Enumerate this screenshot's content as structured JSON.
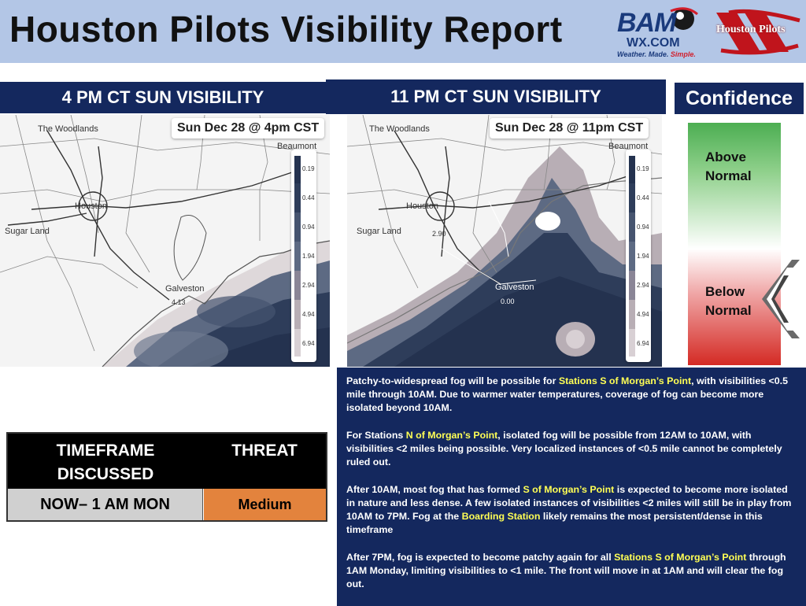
{
  "header": {
    "title": "Houston Pilots Visibility Report",
    "bam_logo": {
      "main": "BAM",
      "sub": "WX.COM",
      "tagline_part1": "Weather. Made. ",
      "tagline_part2": "Simple."
    },
    "houston_pilots_logo": "Houston Pilots"
  },
  "panels": {
    "left": {
      "heading": "4 PM CT SUN VISIBILITY",
      "timestamp": "Sun Dec 28 @ 4pm CST",
      "places": [
        "The Woodlands",
        "Beaumont",
        "Houston",
        "Sugar Land",
        "Galveston"
      ],
      "value_label": "4.13"
    },
    "right": {
      "heading": "11 PM CT SUN VISIBILITY",
      "timestamp": "Sun Dec 28 @ 11pm CST",
      "places": [
        "The Woodlands",
        "Beaumont",
        "Houston",
        "Sugar Land",
        "Galveston"
      ],
      "value_labels": [
        "2.90",
        "0.00"
      ]
    },
    "legend_values": [
      "0.19",
      "0.44",
      "0.94",
      "1.94",
      "2.94",
      "4.94",
      "6.94"
    ]
  },
  "confidence": {
    "heading": "Confidence",
    "above": [
      "Above",
      "Normal"
    ],
    "below": [
      "Below",
      "Normal"
    ],
    "level": "below-normal"
  },
  "table": {
    "col1_header": [
      "TIMEFRAME",
      "DISCUSSED"
    ],
    "col2_header": "THREAT",
    "timeframe": "NOW– 1 AM MON",
    "threat": "Medium",
    "threat_color": "#e3833d"
  },
  "discussion": [
    {
      "parts": [
        "Patchy-to-widespread fog will be possible for ",
        "Stations S of Morgan’s Point",
        ", with visibilities <0.5 mile through 10AM. Due to warmer water temperatures, coverage of fog can become more isolated beyond 10AM."
      ]
    },
    {
      "parts": [
        "For Stations ",
        "N of Morgan’s Point",
        ", isolated fog will be possible from 12AM to 10AM, with visibilities <2 miles being possible. Very localized instances of <0.5 mile cannot be completely ruled out."
      ]
    },
    {
      "parts": [
        "After 10AM, most fog that has formed ",
        "S of Morgan’s Point",
        " is expected to become more isolated in nature and less dense. A few isolated instances of visibilities <2 miles will still be in play from 10AM to 7PM.  Fog at the ",
        "Boarding Station",
        " likely remains the most persistent/dense in this timeframe"
      ]
    },
    {
      "parts": [
        "After 7PM, fog is expected to become patchy again for all ",
        "Stations S of Morgan’s Point",
        " through 1AM Monday, limiting visibilities to <1 mile. The front will move in at 1AM and will clear the fog out."
      ]
    }
  ],
  "colors": {
    "navy": "#14285e",
    "header_bg": "#b3c6e6",
    "highlight": "#ffff55",
    "threat": "#e3833d"
  }
}
